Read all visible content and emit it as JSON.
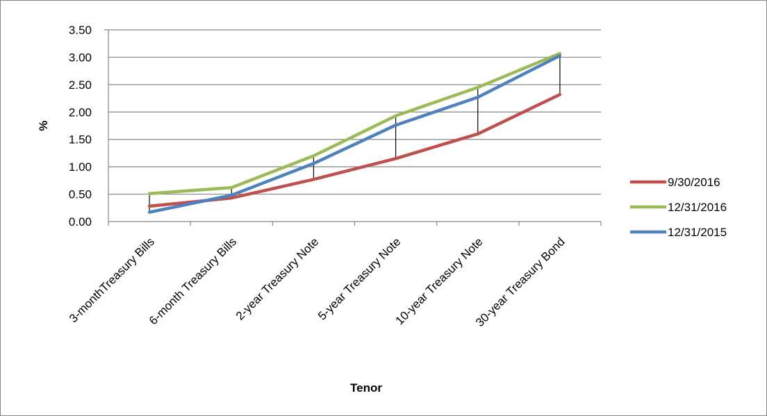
{
  "chart_data": {
    "type": "line",
    "title": "",
    "xlabel": "Tenor",
    "ylabel": "%",
    "categories": [
      "3-monthTreasury Bills",
      "6-month Treasury Bills",
      "2-year Treasury Note",
      "5-year Treasury Note",
      "10-year Treasury Note",
      "30-year Treasury Bond"
    ],
    "ylim": [
      0,
      3.5
    ],
    "yticks": [
      "0.00",
      "0.50",
      "1.00",
      "1.50",
      "2.00",
      "2.50",
      "3.00",
      "3.50"
    ],
    "grid": true,
    "legend_position": "right",
    "high_low_lines": true,
    "series": [
      {
        "name": "9/30/2016",
        "color": "#c0504d",
        "values": [
          0.28,
          0.43,
          0.77,
          1.15,
          1.6,
          2.32
        ]
      },
      {
        "name": "12/31/2016",
        "color": "#9bbb59",
        "values": [
          0.51,
          0.62,
          1.2,
          1.93,
          2.45,
          3.07
        ]
      },
      {
        "name": "12/31/2015",
        "color": "#4f81bd",
        "values": [
          0.17,
          0.48,
          1.06,
          1.76,
          2.27,
          3.03
        ]
      }
    ]
  }
}
